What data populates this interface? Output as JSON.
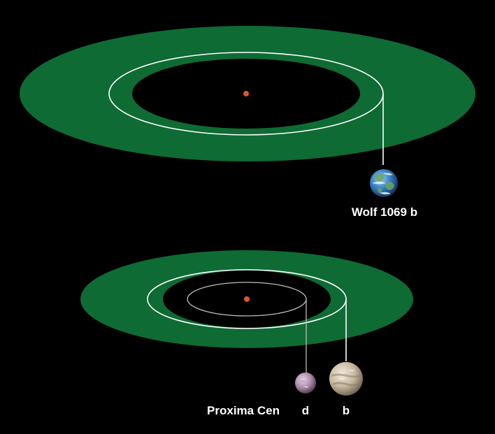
{
  "colors": {
    "background": "#000000",
    "habitable_zone": "#0e6b34",
    "star": "#d9572c",
    "orbit_primary": "#ffffff",
    "orbit_secondary": "#bdbdbd",
    "label": "#ffffff"
  },
  "systems": [
    {
      "star_label": "",
      "planets": [
        {
          "label": "Wolf 1069 b",
          "icon": "earth-like-planet-icon"
        }
      ]
    },
    {
      "star_label": "Proxima Cen",
      "planets": [
        {
          "label": "d",
          "icon": "small-purple-planet-icon"
        },
        {
          "label": "b",
          "icon": "tan-rocky-planet-icon"
        }
      ]
    }
  ]
}
